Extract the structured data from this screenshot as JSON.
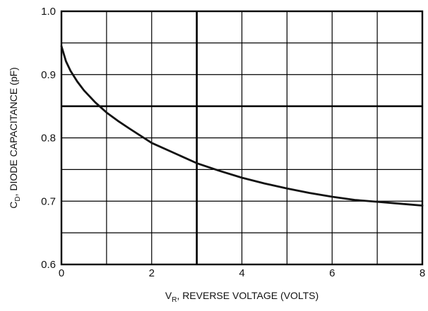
{
  "chart_data": {
    "type": "line",
    "title": "",
    "xlabel_main": "V",
    "xlabel_sub": "R",
    "xlabel_rest": ", REVERSE VOLTAGE (VOLTS)",
    "ylabel_main": "C",
    "ylabel_sub": "D",
    "ylabel_rest": ", DIODE CAPACITANCE (pF)",
    "xlim": [
      0,
      8
    ],
    "ylim": [
      0.6,
      1.0
    ],
    "x_ticks": [
      0,
      2,
      4,
      6,
      8
    ],
    "x_tick_labels": [
      "0",
      "2",
      "4",
      "6",
      "8"
    ],
    "y_ticks": [
      0.6,
      0.7,
      0.8,
      0.9,
      1.0
    ],
    "y_tick_labels": [
      "0.6",
      "0.7",
      "0.8",
      "0.9",
      "1.0"
    ],
    "grid": true,
    "series": [
      {
        "x": [
          0,
          0.1,
          0.2,
          0.35,
          0.5,
          0.75,
          1.0,
          1.25,
          1.5,
          2.0,
          2.5,
          3.0,
          3.5,
          4.0,
          4.5,
          5.0,
          5.5,
          6.0,
          6.5,
          7.0,
          7.5,
          8.0
        ],
        "y": [
          0.945,
          0.921,
          0.906,
          0.889,
          0.875,
          0.856,
          0.84,
          0.827,
          0.815,
          0.792,
          0.776,
          0.76,
          0.748,
          0.737,
          0.728,
          0.72,
          0.713,
          0.707,
          0.702,
          0.699,
          0.696,
          0.693
        ]
      }
    ]
  }
}
